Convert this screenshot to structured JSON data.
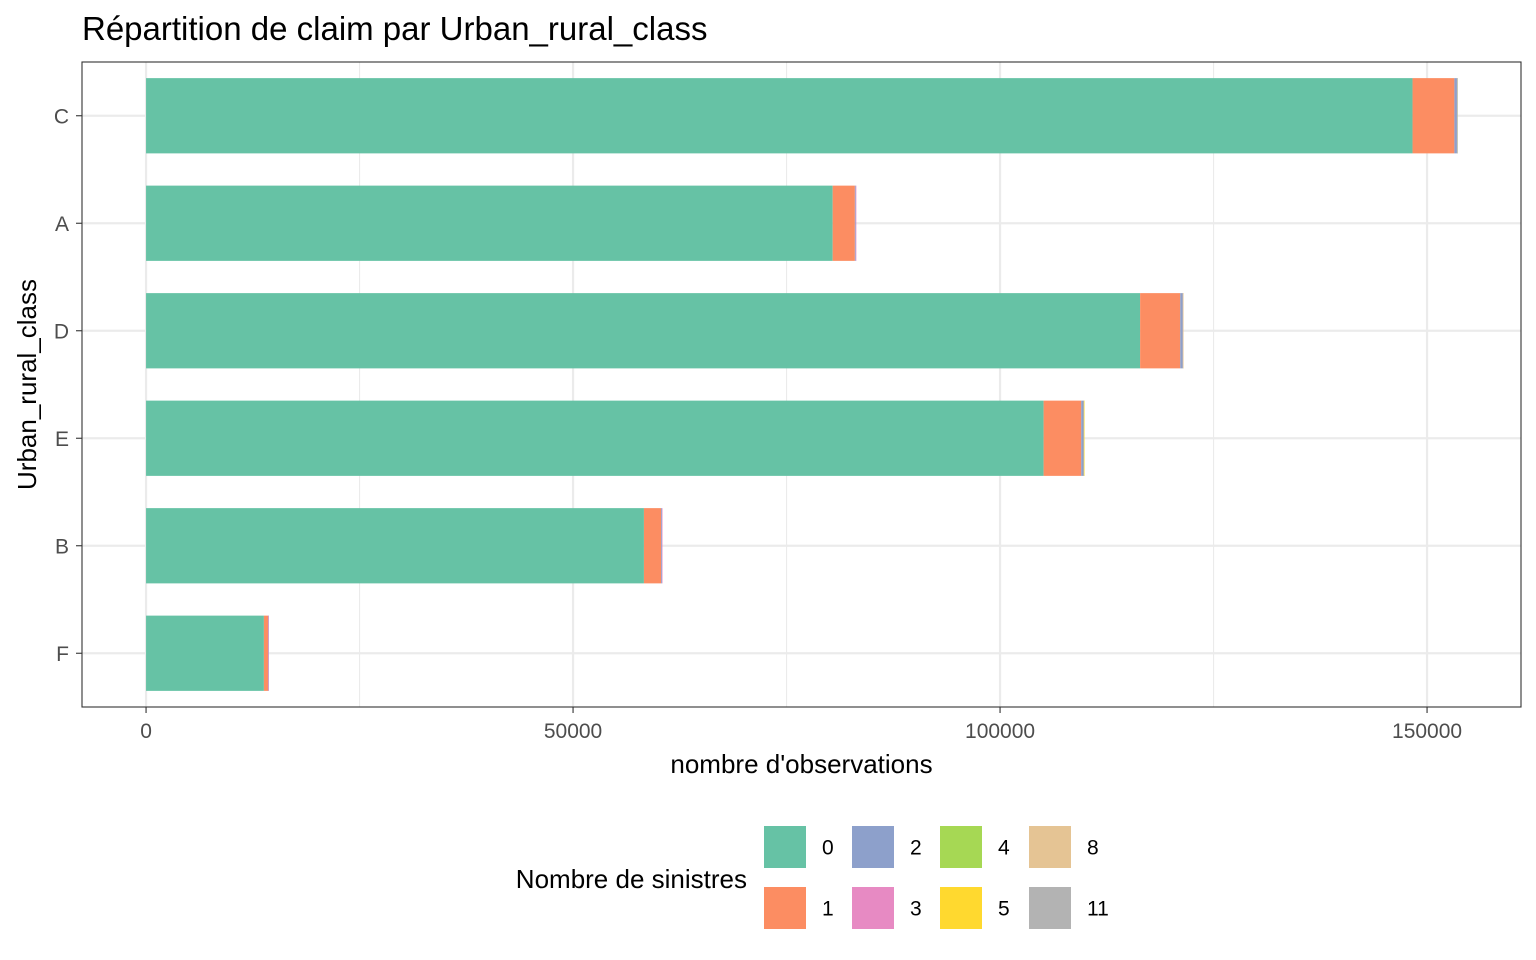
{
  "chart_data": {
    "type": "bar",
    "orientation": "horizontal",
    "stacked": true,
    "title": "Répartition de claim par Urban_rural_class",
    "xlabel": "nombre d'observations",
    "ylabel": "Urban_rural_class",
    "categories": [
      "C",
      "A",
      "D",
      "E",
      "B",
      "F"
    ],
    "xlim": [
      -7500,
      161000
    ],
    "xticks": [
      0,
      50000,
      100000,
      150000
    ],
    "xtick_labels": [
      "0",
      "50000",
      "100000",
      "150000"
    ],
    "grid": true,
    "legend": {
      "title": "Nombre de sinistres",
      "position": "bottom",
      "entries": [
        "0",
        "1",
        "2",
        "3",
        "4",
        "5",
        "8",
        "11"
      ]
    },
    "series": [
      {
        "name": "0",
        "color": "#66c2a5",
        "values": [
          148300,
          80400,
          116400,
          105100,
          58300,
          13800
        ]
      },
      {
        "name": "1",
        "color": "#fc8d62",
        "values": [
          4900,
          2600,
          4700,
          4400,
          2000,
          500
        ]
      },
      {
        "name": "2",
        "color": "#8da0cb",
        "values": [
          300,
          100,
          300,
          300,
          100,
          20
        ]
      },
      {
        "name": "3",
        "color": "#e78ac3",
        "values": [
          10,
          5,
          10,
          10,
          5,
          1
        ]
      },
      {
        "name": "4",
        "color": "#a6d854",
        "values": [
          1,
          0,
          1,
          1,
          0,
          0
        ]
      },
      {
        "name": "5",
        "color": "#ffd92f",
        "values": [
          0,
          0,
          0,
          1,
          0,
          0
        ]
      },
      {
        "name": "8",
        "color": "#e5c494",
        "values": [
          0,
          0,
          1,
          0,
          0,
          0
        ]
      },
      {
        "name": "11",
        "color": "#b3b3b3",
        "values": [
          1,
          0,
          0,
          0,
          0,
          0
        ]
      }
    ]
  }
}
